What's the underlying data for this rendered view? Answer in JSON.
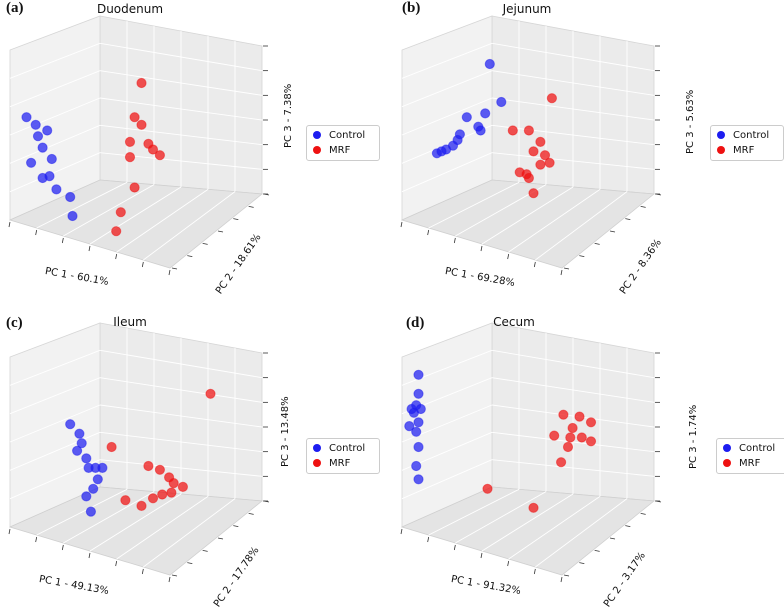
{
  "colors": {
    "control": "#1d1df0",
    "mrf": "#ee1111"
  },
  "chart_data": [
    {
      "type": "scatter",
      "panel_label": "(a)",
      "title": "Duodenum",
      "xlabel": "PC 1 - 60.1%",
      "ylabel": "PC 2 - 18.61%",
      "zlabel": "PC 3 - 7.38%",
      "legend": [
        "Control",
        "MRF"
      ],
      "series": [
        {
          "name": "Control",
          "points": [
            [
              0.05,
              0.62
            ],
            [
              0.09,
              0.58
            ],
            [
              0.1,
              0.52
            ],
            [
              0.14,
              0.55
            ],
            [
              0.12,
              0.46
            ],
            [
              0.16,
              0.4
            ],
            [
              0.07,
              0.38
            ],
            [
              0.15,
              0.31
            ],
            [
              0.12,
              0.3
            ],
            [
              0.18,
              0.24
            ],
            [
              0.24,
              0.2
            ],
            [
              0.25,
              0.1
            ]
          ]
        },
        {
          "name": "MRF",
          "points": [
            [
              0.55,
              0.8
            ],
            [
              0.52,
              0.62
            ],
            [
              0.55,
              0.58
            ],
            [
              0.5,
              0.49
            ],
            [
              0.58,
              0.48
            ],
            [
              0.6,
              0.45
            ],
            [
              0.63,
              0.42
            ],
            [
              0.5,
              0.41
            ],
            [
              0.52,
              0.25
            ],
            [
              0.46,
              0.12
            ],
            [
              0.44,
              0.02
            ]
          ]
        }
      ]
    },
    {
      "type": "scatter",
      "panel_label": "(b)",
      "title": "Jejunum",
      "xlabel": "PC 1 - 69.28%",
      "ylabel": "PC 2 - 8.36%",
      "zlabel": "PC 3 - 5.63%",
      "legend": [
        "Control",
        "MRF"
      ],
      "series": [
        {
          "name": "Control",
          "points": [
            [
              0.36,
              0.9
            ],
            [
              0.41,
              0.7
            ],
            [
              0.34,
              0.64
            ],
            [
              0.26,
              0.62
            ],
            [
              0.31,
              0.57
            ],
            [
              0.32,
              0.55
            ],
            [
              0.23,
              0.53
            ],
            [
              0.22,
              0.5
            ],
            [
              0.2,
              0.47
            ],
            [
              0.17,
              0.45
            ],
            [
              0.15,
              0.44
            ],
            [
              0.13,
              0.43
            ]
          ]
        },
        {
          "name": "MRF",
          "points": [
            [
              0.63,
              0.72
            ],
            [
              0.46,
              0.55
            ],
            [
              0.53,
              0.55
            ],
            [
              0.58,
              0.49
            ],
            [
              0.55,
              0.44
            ],
            [
              0.6,
              0.42
            ],
            [
              0.62,
              0.38
            ],
            [
              0.58,
              0.37
            ],
            [
              0.49,
              0.33
            ],
            [
              0.52,
              0.32
            ],
            [
              0.53,
              0.3
            ],
            [
              0.55,
              0.22
            ]
          ]
        }
      ]
    },
    {
      "type": "scatter",
      "panel_label": "(c)",
      "title": "Ileum",
      "xlabel": "PC 1 - 49.13%",
      "ylabel": "PC 2 - 17.78%",
      "zlabel": "PC 3 - 13.48%",
      "legend": [
        "Control",
        "MRF"
      ],
      "series": [
        {
          "name": "Control",
          "points": [
            [
              0.24,
              0.62
            ],
            [
              0.28,
              0.57
            ],
            [
              0.29,
              0.52
            ],
            [
              0.27,
              0.48
            ],
            [
              0.31,
              0.44
            ],
            [
              0.32,
              0.39
            ],
            [
              0.35,
              0.39
            ],
            [
              0.38,
              0.39
            ],
            [
              0.36,
              0.33
            ],
            [
              0.34,
              0.28
            ],
            [
              0.31,
              0.24
            ],
            [
              0.33,
              0.16
            ]
          ]
        },
        {
          "name": "MRF",
          "points": [
            [
              0.85,
              0.78
            ],
            [
              0.42,
              0.5
            ],
            [
              0.58,
              0.4
            ],
            [
              0.63,
              0.38
            ],
            [
              0.67,
              0.34
            ],
            [
              0.69,
              0.31
            ],
            [
              0.73,
              0.29
            ],
            [
              0.68,
              0.26
            ],
            [
              0.64,
              0.25
            ],
            [
              0.6,
              0.23
            ],
            [
              0.48,
              0.22
            ],
            [
              0.55,
              0.19
            ]
          ]
        }
      ]
    },
    {
      "type": "scatter",
      "panel_label": "(d)",
      "title": "Cecum",
      "xlabel": "PC 1 - 91.32%",
      "ylabel": "PC 2 - 3.17%",
      "zlabel": "PC 3 - 1.74%",
      "legend": [
        "Control",
        "MRF"
      ],
      "series": [
        {
          "name": "Control",
          "points": [
            [
              0.05,
              0.88
            ],
            [
              0.05,
              0.78
            ],
            [
              0.04,
              0.72
            ],
            [
              0.02,
              0.7
            ],
            [
              0.06,
              0.7
            ],
            [
              0.03,
              0.68
            ],
            [
              0.05,
              0.63
            ],
            [
              0.01,
              0.61
            ],
            [
              0.04,
              0.58
            ],
            [
              0.05,
              0.5
            ],
            [
              0.04,
              0.4
            ],
            [
              0.05,
              0.33
            ]
          ]
        },
        {
          "name": "MRF",
          "points": [
            [
              0.68,
              0.67
            ],
            [
              0.75,
              0.66
            ],
            [
              0.8,
              0.63
            ],
            [
              0.72,
              0.6
            ],
            [
              0.64,
              0.56
            ],
            [
              0.71,
              0.55
            ],
            [
              0.76,
              0.55
            ],
            [
              0.8,
              0.53
            ],
            [
              0.7,
              0.5
            ],
            [
              0.67,
              0.42
            ],
            [
              0.35,
              0.28
            ],
            [
              0.55,
              0.18
            ]
          ]
        }
      ]
    }
  ]
}
